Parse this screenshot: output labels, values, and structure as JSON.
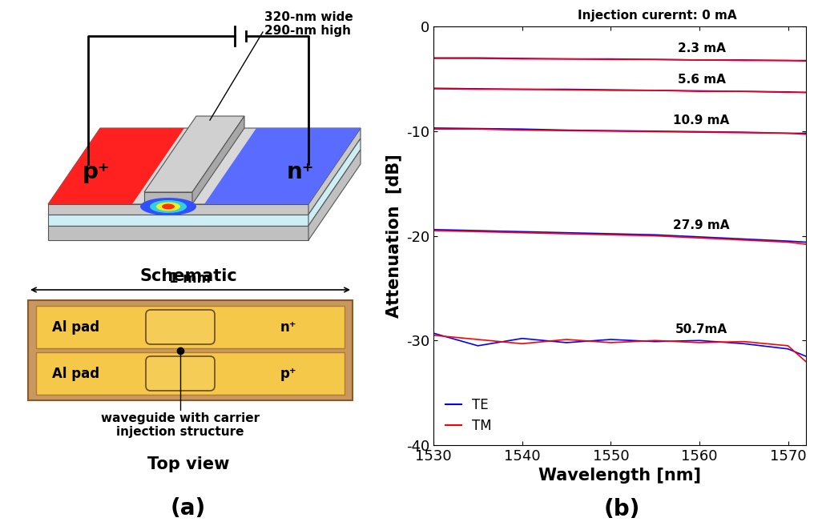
{
  "panel_a": {
    "label": "(a)",
    "schematic": {
      "title": "Schematic",
      "annotation": "320-nm wide\n290-nm high",
      "regions": [
        "p⁺",
        "n⁺"
      ]
    },
    "top_view": {
      "title": "Top view",
      "dimension": "1 mm",
      "pads": [
        {
          "label": "Al pad",
          "doping": "n⁺"
        },
        {
          "label": "Al pad",
          "doping": "p⁺"
        }
      ],
      "callout": "waveguide with carrier\ninjection structure"
    }
  },
  "panel_b": {
    "label": "(b)"
  },
  "chart_data": {
    "type": "line",
    "x_label": "Wavelength [nm]",
    "y_label": "Attenuation  [dB]",
    "x": [
      1530,
      1535,
      1540,
      1545,
      1550,
      1555,
      1560,
      1565,
      1570,
      1572
    ],
    "xlim": [
      1530,
      1572
    ],
    "xticks": [
      1530,
      1540,
      1550,
      1560,
      1570
    ],
    "ylim": [
      -40,
      0
    ],
    "yticks": [
      -40,
      -30,
      -20,
      -10,
      0
    ],
    "legend": "lower left",
    "groups": [
      {
        "label": "Injection curernt: 0 mA",
        "series": [
          {
            "name": "TE",
            "color": "#0000ff",
            "values": [
              0,
              0,
              0,
              0,
              0,
              0,
              0,
              0,
              0,
              0
            ]
          },
          {
            "name": "TM",
            "color": "#ff0000",
            "values": [
              0,
              0,
              0,
              0,
              0,
              0,
              0,
              0,
              0,
              0
            ]
          }
        ]
      },
      {
        "label": "2.3 mA",
        "series": [
          {
            "name": "TE",
            "color": "#0000ff",
            "values": [
              -3.0,
              -3.0,
              -3.05,
              -3.1,
              -3.1,
              -3.15,
              -3.2,
              -3.2,
              -3.25,
              -3.25
            ]
          },
          {
            "name": "TM",
            "color": "#ff0000",
            "values": [
              -3.05,
              -3.05,
              -3.1,
              -3.1,
              -3.15,
              -3.15,
              -3.2,
              -3.25,
              -3.25,
              -3.3
            ]
          }
        ]
      },
      {
        "label": "5.6 mA",
        "series": [
          {
            "name": "TE",
            "color": "#0000ff",
            "values": [
              -5.9,
              -5.95,
              -6.0,
              -6.0,
              -6.05,
              -6.1,
              -6.15,
              -6.2,
              -6.25,
              -6.3
            ]
          },
          {
            "name": "TM",
            "color": "#ff0000",
            "values": [
              -5.95,
              -6.0,
              -6.0,
              -6.05,
              -6.1,
              -6.1,
              -6.2,
              -6.2,
              -6.3,
              -6.3
            ]
          }
        ]
      },
      {
        "label": "10.9 mA",
        "series": [
          {
            "name": "TE",
            "color": "#0000ff",
            "values": [
              -9.7,
              -9.75,
              -9.8,
              -9.9,
              -9.95,
              -10.0,
              -10.05,
              -10.1,
              -10.2,
              -10.2
            ]
          },
          {
            "name": "TM",
            "color": "#ff0000",
            "values": [
              -9.8,
              -9.8,
              -9.9,
              -9.95,
              -10.0,
              -10.05,
              -10.1,
              -10.15,
              -10.2,
              -10.3
            ]
          }
        ]
      },
      {
        "label": "27.9 mA",
        "series": [
          {
            "name": "TE",
            "color": "#0000ff",
            "values": [
              -19.4,
              -19.5,
              -19.6,
              -19.7,
              -19.8,
              -19.9,
              -20.1,
              -20.3,
              -20.5,
              -20.6
            ]
          },
          {
            "name": "TM",
            "color": "#ff0000",
            "values": [
              -19.5,
              -19.6,
              -19.7,
              -19.8,
              -19.9,
              -20.0,
              -20.2,
              -20.4,
              -20.6,
              -20.8
            ]
          }
        ]
      },
      {
        "label": "50.7mA",
        "series": [
          {
            "name": "TE",
            "color": "#0000ff",
            "values": [
              -29.3,
              -30.5,
              -29.8,
              -30.2,
              -29.9,
              -30.1,
              -30.0,
              -30.3,
              -30.8,
              -31.5
            ]
          },
          {
            "name": "TM",
            "color": "#ff0000",
            "values": [
              -29.5,
              -29.9,
              -30.3,
              -29.9,
              -30.2,
              -30.0,
              -30.2,
              -30.1,
              -30.5,
              -32.0
            ]
          }
        ]
      }
    ]
  }
}
